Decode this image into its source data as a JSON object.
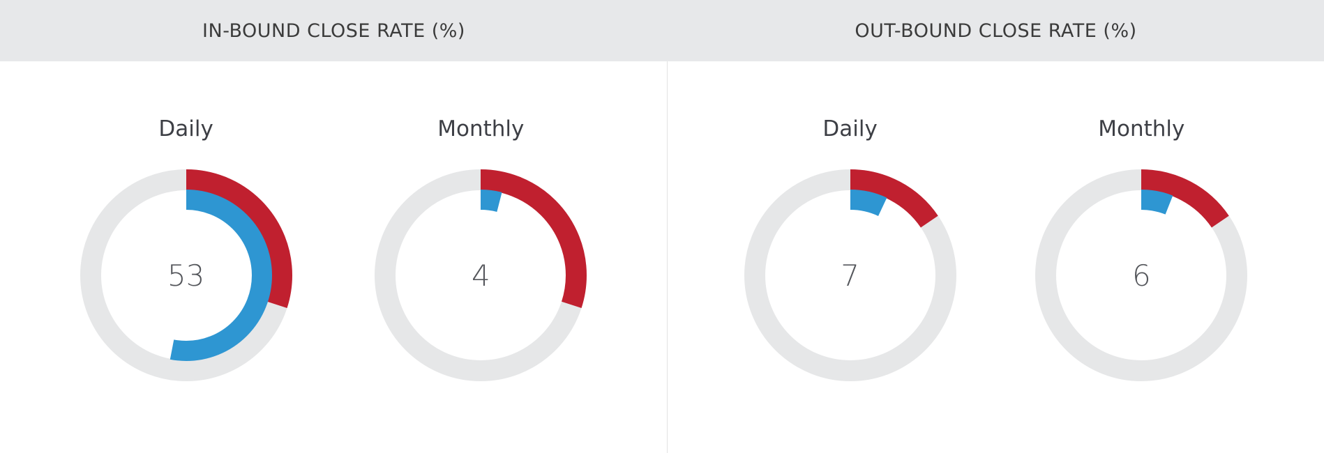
{
  "header": {
    "panels": [
      {
        "title": "IN-BOUND CLOSE RATE (%)"
      },
      {
        "title": "OUT-BOUND CLOSE RATE (%)"
      }
    ]
  },
  "colors": {
    "value_arc_blue": "#2e96d2",
    "benchmark_arc_red": "#c0202f",
    "track_gray": "#e6e7e8",
    "header_bg": "#e7e8ea",
    "title_text": "#3b3b3b",
    "label_text": "#3d3f45",
    "value_text": "#54565b",
    "divider": "#e3e3e3",
    "background": "#ffffff"
  },
  "chart_data": [
    {
      "type": "donut-gauge",
      "panel_index": 0,
      "panel": "IN-BOUND CLOSE RATE (%)",
      "label": "Daily",
      "value": 53,
      "max": 100,
      "benchmark_pct": 30,
      "start_angle_deg": 0,
      "direction": "clockwise"
    },
    {
      "type": "donut-gauge",
      "panel_index": 0,
      "panel": "IN-BOUND CLOSE RATE (%)",
      "label": "Monthly",
      "value": 4,
      "max": 100,
      "benchmark_pct": 30,
      "start_angle_deg": 0,
      "direction": "clockwise"
    },
    {
      "type": "donut-gauge",
      "panel_index": 1,
      "panel": "OUT-BOUND CLOSE RATE (%)",
      "label": "Daily",
      "value": 7,
      "max": 100,
      "benchmark_pct": 15.5,
      "start_angle_deg": 0,
      "direction": "clockwise"
    },
    {
      "type": "donut-gauge",
      "panel_index": 1,
      "panel": "OUT-BOUND CLOSE RATE (%)",
      "label": "Monthly",
      "value": 6,
      "max": 100,
      "benchmark_pct": 15.5,
      "start_angle_deg": 0,
      "direction": "clockwise"
    }
  ]
}
